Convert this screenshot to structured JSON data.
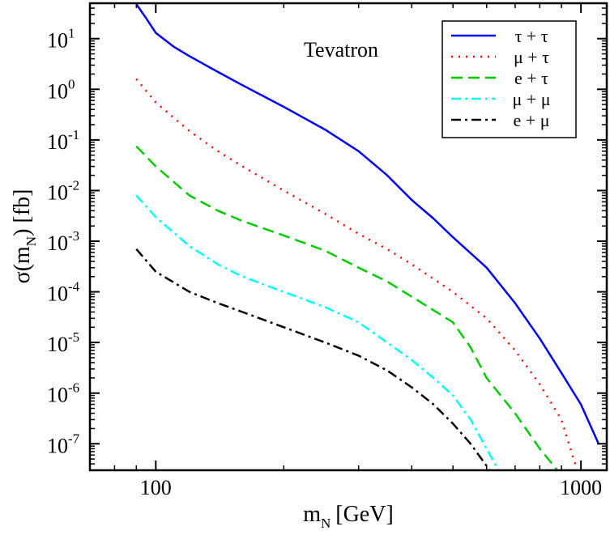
{
  "chart_data": {
    "type": "line",
    "annotation": "Tevatron",
    "xlabel": {
      "main": "m",
      "sub": "N",
      "rest": "[GeV]"
    },
    "ylabel": {
      "main": "σ(m",
      "sub": "N",
      "rest": ") [fb]"
    },
    "x_scale": "log",
    "y_scale": "log",
    "xlim": [
      70,
      1150
    ],
    "ylim": [
      3e-08,
      50
    ],
    "x_ticks": [
      {
        "value": 100,
        "label": "100"
      },
      {
        "value": 1000,
        "label": "1000"
      }
    ],
    "y_ticks": [
      {
        "value": 10,
        "base": "10",
        "exp": "1"
      },
      {
        "value": 1,
        "base": "10",
        "exp": "0"
      },
      {
        "value": 0.1,
        "base": "10",
        "exp": "-1"
      },
      {
        "value": 0.01,
        "base": "10",
        "exp": "-2"
      },
      {
        "value": 0.001,
        "base": "10",
        "exp": "-3"
      },
      {
        "value": 0.0001,
        "base": "10",
        "exp": "-4"
      },
      {
        "value": 1e-05,
        "base": "10",
        "exp": "-5"
      },
      {
        "value": 1e-06,
        "base": "10",
        "exp": "-6"
      },
      {
        "value": 1e-07,
        "base": "10",
        "exp": "-7"
      }
    ],
    "legend_position": "top-right",
    "series": [
      {
        "name": "τ + τ",
        "color": "#0000ff",
        "dash": "solid",
        "x": [
          90,
          95,
          100,
          110,
          120,
          140,
          160,
          200,
          250,
          300,
          350,
          400,
          450,
          500,
          600,
          700,
          800,
          900,
          1000,
          1100
        ],
        "y": [
          48,
          25,
          13,
          7,
          4.5,
          2.2,
          1.2,
          0.45,
          0.16,
          0.06,
          0.02,
          0.0065,
          0.0028,
          0.0012,
          0.0003,
          6e-05,
          1.2e-05,
          2.5e-06,
          6e-07,
          1e-07
        ]
      },
      {
        "name": "μ + τ",
        "color": "#ff0000",
        "dash": "dot",
        "x": [
          90,
          100,
          120,
          140,
          160,
          200,
          250,
          300,
          350,
          400,
          500,
          600,
          700,
          800,
          900,
          980
        ],
        "y": [
          1.6,
          0.55,
          0.15,
          0.06,
          0.03,
          0.01,
          0.0035,
          0.0014,
          0.0007,
          0.00035,
          0.0001,
          3e-05,
          7e-06,
          1.5e-06,
          3e-07,
          3e-08
        ]
      },
      {
        "name": "e + τ",
        "color": "#00cc00",
        "dash": "dash",
        "x": [
          90,
          100,
          120,
          140,
          160,
          200,
          250,
          300,
          350,
          400,
          500,
          550,
          600,
          700,
          800,
          880
        ],
        "y": [
          0.075,
          0.03,
          0.008,
          0.004,
          0.0025,
          0.0013,
          0.00065,
          0.0003,
          0.00016,
          8e-05,
          2.5e-05,
          8e-06,
          2e-06,
          4e-07,
          8e-08,
          3e-08
        ]
      },
      {
        "name": "μ + μ",
        "color": "#00ffff",
        "dash": "dashdot",
        "x": [
          90,
          100,
          120,
          140,
          160,
          200,
          250,
          300,
          350,
          400,
          450,
          500,
          550,
          600,
          640
        ],
        "y": [
          0.008,
          0.003,
          0.0008,
          0.00035,
          0.0002,
          0.0001,
          5e-05,
          2.5e-05,
          1e-05,
          4.5e-06,
          2e-06,
          9e-07,
          3e-07,
          8e-08,
          3e-08
        ]
      },
      {
        "name": "e + μ",
        "color": "#000000",
        "dash": "dashdot",
        "x": [
          90,
          100,
          120,
          140,
          160,
          200,
          250,
          300,
          350,
          400,
          450,
          500,
          550,
          610
        ],
        "y": [
          0.0007,
          0.00025,
          0.0001,
          6e-05,
          4e-05,
          2e-05,
          1e-05,
          5.5e-06,
          2.8e-06,
          1.3e-06,
          6e-07,
          2.5e-07,
          1e-07,
          3e-08
        ]
      }
    ]
  }
}
